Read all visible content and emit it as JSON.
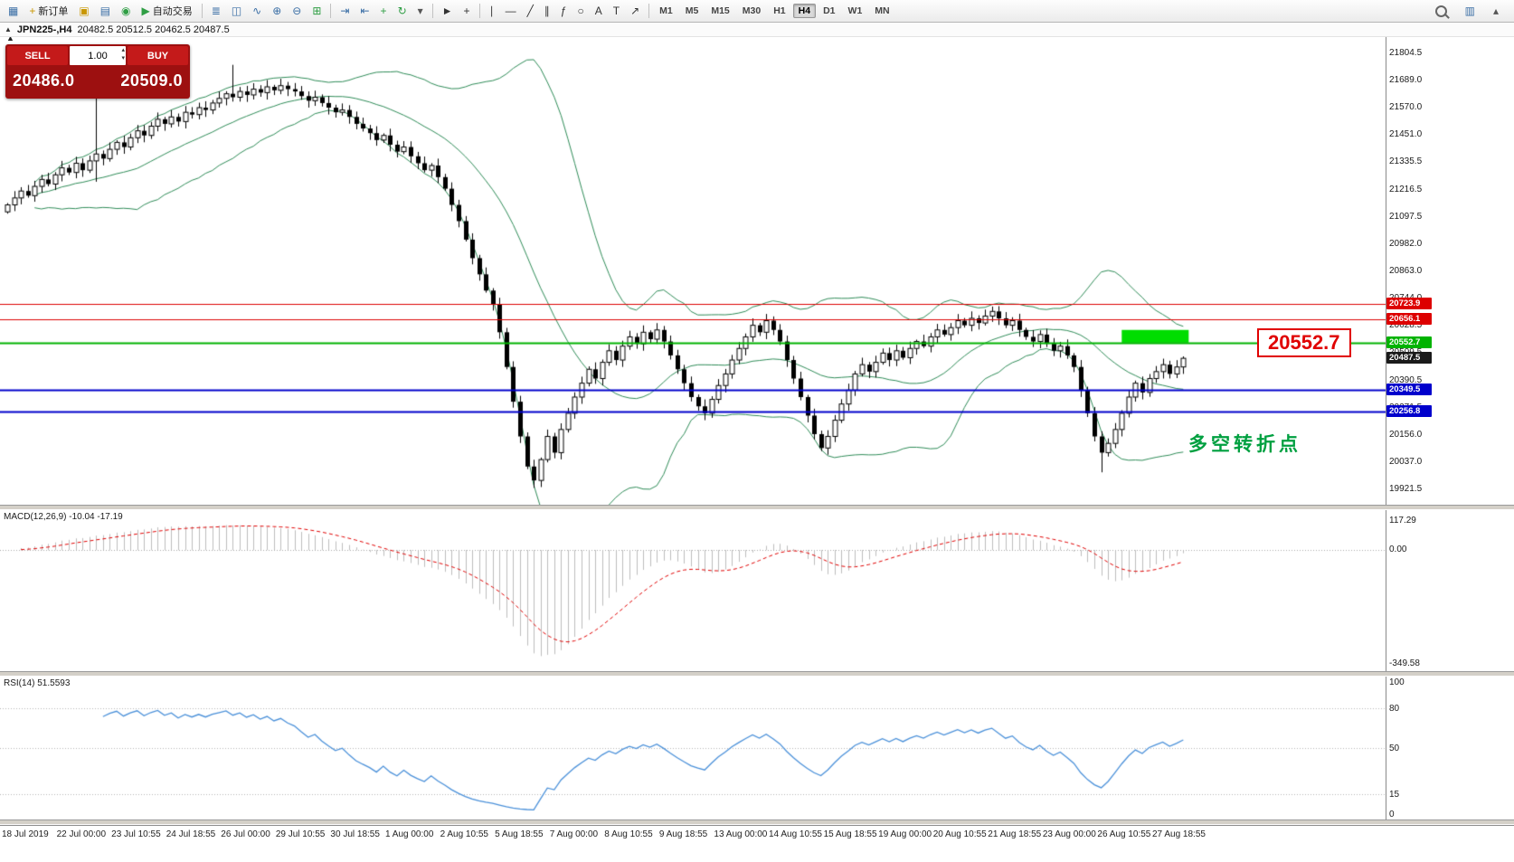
{
  "toolbar": {
    "items": [
      {
        "name": "new-chart-button",
        "glyph": "▦",
        "color": "#3a6ea5"
      },
      {
        "name": "new-order-button",
        "glyph": "+",
        "color": "#c99700",
        "label": "新订单"
      },
      {
        "name": "chart-screenshot-button",
        "glyph": "▣",
        "color": "#c99700"
      },
      {
        "name": "print-button",
        "glyph": "▤",
        "color": "#3a6ea5"
      },
      {
        "name": "data-folder-button",
        "glyph": "◉",
        "color": "#2f9e44"
      },
      {
        "name": "autotrading-button",
        "glyph": "▶",
        "color": "#2f9e44",
        "label": "自动交易"
      },
      {
        "type": "sep"
      },
      {
        "name": "bars-chart-button",
        "glyph": "≣",
        "color": "#3a6ea5"
      },
      {
        "name": "candlestick-chart-button",
        "glyph": "◫",
        "color": "#3a6ea5"
      },
      {
        "name": "line-chart-button",
        "glyph": "∿",
        "color": "#3a6ea5"
      },
      {
        "name": "zoom-in-button",
        "glyph": "⊕",
        "color": "#3a6ea5"
      },
      {
        "name": "zoom-out-button",
        "glyph": "⊖",
        "color": "#3a6ea5"
      },
      {
        "name": "tile-windows-button",
        "glyph": "⊞",
        "color": "#2f9e44"
      },
      {
        "type": "sep"
      },
      {
        "name": "auto-scroll-button",
        "glyph": "⇥",
        "color": "#3a6ea5"
      },
      {
        "name": "chart-shift-button",
        "glyph": "⇤",
        "color": "#3a6ea5"
      },
      {
        "name": "add-indicator-button",
        "glyph": "+",
        "color": "#2f9e44"
      },
      {
        "name": "period-refresh-button",
        "glyph": "↻",
        "color": "#2f9e44"
      },
      {
        "name": "templates-button",
        "glyph": "▾",
        "color": "#555555"
      },
      {
        "type": "sep"
      },
      {
        "name": "cursor-button",
        "glyph": "►",
        "color": "#333333"
      },
      {
        "name": "crosshair-button",
        "glyph": "+",
        "color": "#333333"
      },
      {
        "type": "sep"
      },
      {
        "name": "vertical-line-button",
        "glyph": "∣",
        "color": "#333333"
      },
      {
        "name": "horizontal-line-button",
        "glyph": "―",
        "color": "#333333"
      },
      {
        "name": "trendline-button",
        "glyph": "╱",
        "color": "#333333"
      },
      {
        "name": "channel-button",
        "glyph": "∥",
        "color": "#333333"
      },
      {
        "name": "fibonacci-button",
        "glyph": "ƒ",
        "color": "#333333"
      },
      {
        "name": "shapes-button",
        "glyph": "○",
        "color": "#333333"
      },
      {
        "name": "text-button",
        "glyph": "A",
        "color": "#333333"
      },
      {
        "name": "text-label-button",
        "glyph": "T",
        "color": "#333333"
      },
      {
        "name": "arrows-button",
        "glyph": "↗",
        "color": "#333333"
      },
      {
        "type": "sep"
      }
    ],
    "timeframes": [
      "M1",
      "M5",
      "M15",
      "M30",
      "H1",
      "H4",
      "D1",
      "W1",
      "MN"
    ],
    "active_timeframe": "H4",
    "items_right": [
      {
        "name": "search-button",
        "css": "search"
      },
      {
        "name": "chart-profile-button",
        "glyph": "▥",
        "color": "#3a6ea5"
      },
      {
        "name": "toolbar-overflow-button",
        "glyph": "▴",
        "color": "#555555"
      }
    ]
  },
  "icons": {
    "collapse": "▲",
    "spin_up": "▴",
    "spin_down": "▾"
  },
  "chart_header": {
    "symbol_title": "JPN225-,H4",
    "ohlc": "20482.5 20512.5 20462.5 20487.5"
  },
  "trade_panel": {
    "sell_label": "SELL",
    "buy_label": "BUY",
    "volume": "1.00",
    "sell_price": "20486.0",
    "buy_price": "20509.0"
  },
  "annotations": {
    "big_price_label": {
      "text": "20552.7",
      "price": 20552.7
    },
    "note": {
      "text": "多空转折点",
      "price": 20125
    }
  },
  "indicators": {
    "macd": {
      "label": "MACD(12,26,9) -10.04 -17.19",
      "axis": [
        "117.29",
        "0.00",
        "-349.58"
      ]
    },
    "rsi": {
      "label": "RSI(14) 51.5593",
      "axis": [
        "100",
        "80",
        "50",
        "15",
        "0"
      ],
      "levels": [
        80,
        50,
        15
      ]
    }
  },
  "chart_data": {
    "type": "candlestick",
    "title": "JPN225-,H4",
    "current_ohlc": {
      "open": 20482.5,
      "high": 20512.5,
      "low": 20462.5,
      "close": 20487.5
    },
    "y_range": [
      19921.5,
      21804.5
    ],
    "y_axis_ticks": [
      "21804.5",
      "21689.0",
      "21570.0",
      "21451.0",
      "21335.5",
      "21216.5",
      "21097.5",
      "20982.0",
      "20863.0",
      "20744.0",
      "20628.5",
      "20509.5",
      "20390.5",
      "20271.5",
      "20156.0",
      "20037.0",
      "19921.5"
    ],
    "x_labels": [
      "18 Jul 2019",
      "22 Jul 00:00",
      "23 Jul 10:55",
      "24 Jul 18:55",
      "26 Jul 00:00",
      "29 Jul 10:55",
      "30 Jul 18:55",
      "1 Aug 00:00",
      "2 Aug 10:55",
      "5 Aug 18:55",
      "7 Aug 00:00",
      "8 Aug 10:55",
      "9 Aug 18:55",
      "13 Aug 00:00",
      "14 Aug 10:55",
      "15 Aug 18:55",
      "19 Aug 00:00",
      "20 Aug 10:55",
      "21 Aug 18:55",
      "23 Aug 00:00",
      "26 Aug 10:55",
      "27 Aug 18:55"
    ],
    "closes": [
      21150,
      21180,
      21210,
      21190,
      21230,
      21260,
      21240,
      21280,
      21310,
      21290,
      21330,
      21300,
      21340,
      21370,
      21350,
      21390,
      21420,
      21400,
      21440,
      21470,
      21450,
      21490,
      21520,
      21500,
      21530,
      21510,
      21550,
      21540,
      21570,
      21560,
      21590,
      21610,
      21630,
      21615,
      21640,
      21625,
      21650,
      21635,
      21660,
      21645,
      21665,
      21650,
      21640,
      21620,
      21600,
      21615,
      21590,
      21570,
      21550,
      21560,
      21530,
      21500,
      21480,
      21460,
      21430,
      21450,
      21410,
      21380,
      21400,
      21360,
      21330,
      21300,
      21320,
      21270,
      21220,
      21150,
      21080,
      21000,
      20920,
      20850,
      20780,
      20720,
      20600,
      20450,
      20300,
      20150,
      20020,
      19960,
      20050,
      20150,
      20080,
      20180,
      20250,
      20320,
      20380,
      20440,
      20400,
      20470,
      20520,
      20480,
      20540,
      20580,
      20550,
      20600,
      20570,
      20610,
      20560,
      20500,
      20440,
      20380,
      20320,
      20280,
      20250,
      20310,
      20370,
      20420,
      20480,
      20530,
      20580,
      20630,
      20600,
      20650,
      20610,
      20560,
      20480,
      20400,
      20320,
      20240,
      20160,
      20100,
      20150,
      20220,
      20290,
      20350,
      20420,
      20460,
      20430,
      20470,
      20510,
      20480,
      20520,
      20490,
      20530,
      20560,
      20540,
      20580,
      20610,
      20590,
      20620,
      20650,
      20630,
      20660,
      20640,
      20670,
      20690,
      20660,
      20630,
      20650,
      20610,
      20580,
      20560,
      20590,
      20550,
      20520,
      20540,
      20500,
      20450,
      20350,
      20250,
      20150,
      20080,
      20120,
      20180,
      20250,
      20320,
      20380,
      20340,
      20400,
      20430,
      20460,
      20420,
      20450,
      20487.5
    ],
    "wick_overrides": {
      "13": {
        "high": 21630,
        "low": 21250
      },
      "33": {
        "high": 21755
      },
      "77": {
        "low": 19928
      },
      "160": {
        "low": 19995
      }
    },
    "bollinger": {
      "period": 20,
      "deviation": 2,
      "color": "#2e8b57"
    },
    "horizontal_lines": [
      {
        "price": 20723.9,
        "label": "20723.9",
        "color": "#dd0000",
        "width": 1
      },
      {
        "price": 20656.1,
        "label": "20656.1",
        "color": "#dd0000",
        "width": 1
      },
      {
        "price": 20552.7,
        "label": "20552.7",
        "color": "#00b300",
        "width": 2
      },
      {
        "price": 20349.5,
        "label": "20349.5",
        "color": "#0000cc",
        "width": 2
      },
      {
        "price": 20256.8,
        "label": "20256.8",
        "color": "#0000cc",
        "width": 2
      }
    ],
    "current_price_tag": {
      "price": 20487.5,
      "label": "20487.5",
      "color": "#1a1a1a"
    },
    "highlight_rect": {
      "price_top": 20610,
      "price_bottom": 20555,
      "start_index": 163,
      "end_index": 172,
      "color": "#00dd00"
    }
  }
}
